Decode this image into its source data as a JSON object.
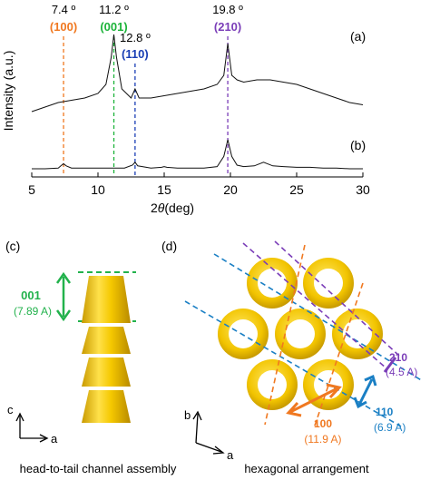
{
  "chart_data": {
    "type": "line",
    "x_axis": {
      "label_prefix": "2",
      "label_symbol": "θ",
      "label_suffix": "(deg)",
      "range": [
        5,
        30
      ],
      "ticks": [
        5,
        10,
        15,
        20,
        25,
        30
      ]
    },
    "y_axis": {
      "label": "Intensity (a.u.)"
    },
    "grid": false,
    "series": [
      {
        "name": "(a)",
        "x": [
          5,
          6,
          7,
          8,
          9,
          10,
          10.6,
          11,
          11.2,
          11.4,
          11.8,
          12.5,
          12.8,
          13.1,
          14,
          15,
          16,
          17,
          18,
          19,
          19.5,
          19.8,
          20.1,
          20.5,
          21,
          22,
          23,
          24,
          25,
          26,
          27,
          28,
          29,
          30
        ],
        "y": [
          0.62,
          0.64,
          0.66,
          0.67,
          0.68,
          0.7,
          0.74,
          0.86,
          0.96,
          0.86,
          0.72,
          0.68,
          0.72,
          0.68,
          0.68,
          0.69,
          0.7,
          0.71,
          0.72,
          0.74,
          0.78,
          0.92,
          0.78,
          0.76,
          0.75,
          0.76,
          0.76,
          0.75,
          0.74,
          0.72,
          0.7,
          0.68,
          0.66,
          0.65
        ]
      },
      {
        "name": "(b)",
        "x": [
          5,
          6,
          7,
          7.2,
          7.4,
          7.6,
          8,
          9,
          10,
          11,
          12,
          12.6,
          12.8,
          13,
          14,
          14.8,
          15,
          15.2,
          16,
          17,
          18,
          19,
          19.5,
          19.8,
          20.1,
          20.5,
          21,
          21.8,
          22.5,
          23.2,
          24,
          25,
          26,
          27,
          28,
          29,
          30
        ],
        "y": [
          0.05,
          0.05,
          0.06,
          0.09,
          0.12,
          0.09,
          0.06,
          0.06,
          0.06,
          0.06,
          0.06,
          0.1,
          0.14,
          0.09,
          0.06,
          0.07,
          0.08,
          0.07,
          0.06,
          0.06,
          0.06,
          0.08,
          0.22,
          0.45,
          0.22,
          0.1,
          0.08,
          0.09,
          0.14,
          0.09,
          0.08,
          0.07,
          0.07,
          0.06,
          0.06,
          0.05,
          0.05
        ]
      }
    ],
    "peaks": [
      {
        "x": 7.4,
        "angle": "7.4 º",
        "index": "(100)",
        "color": "#f07820"
      },
      {
        "x": 11.2,
        "angle": "11.2 º",
        "index": "(001)",
        "color": "#1db33a"
      },
      {
        "x": 12.8,
        "angle": "12.8 º",
        "index": "(110)",
        "color": "#1a3fb5"
      },
      {
        "x": 19.8,
        "angle": "19.8 º",
        "index": "(210)",
        "color": "#7a3db8"
      }
    ]
  },
  "panel_c": {
    "label": "(c)",
    "spacing_index": "001",
    "spacing_value": "(7.89 A)",
    "axis_vertical": "c",
    "axis_horizontal": "a",
    "caption": "head-to-tail channel assembly",
    "colors": {
      "cylinder": "#f2c400",
      "spacing": "#22b24c"
    }
  },
  "panel_d": {
    "label": "(d)",
    "axis_vertical": "b",
    "axis_horizontal": "a",
    "caption": "hexagonal arrangement",
    "d100": {
      "index": "100",
      "value": "(11.9 A)",
      "color": "#f07820"
    },
    "d110": {
      "index": "110",
      "value": "(6.9 A)",
      "color": "#1a7fc4"
    },
    "d210": {
      "index": "210",
      "value": "(4.5 A)",
      "color": "#7a3db8"
    },
    "ring_color": "#f2c400"
  }
}
